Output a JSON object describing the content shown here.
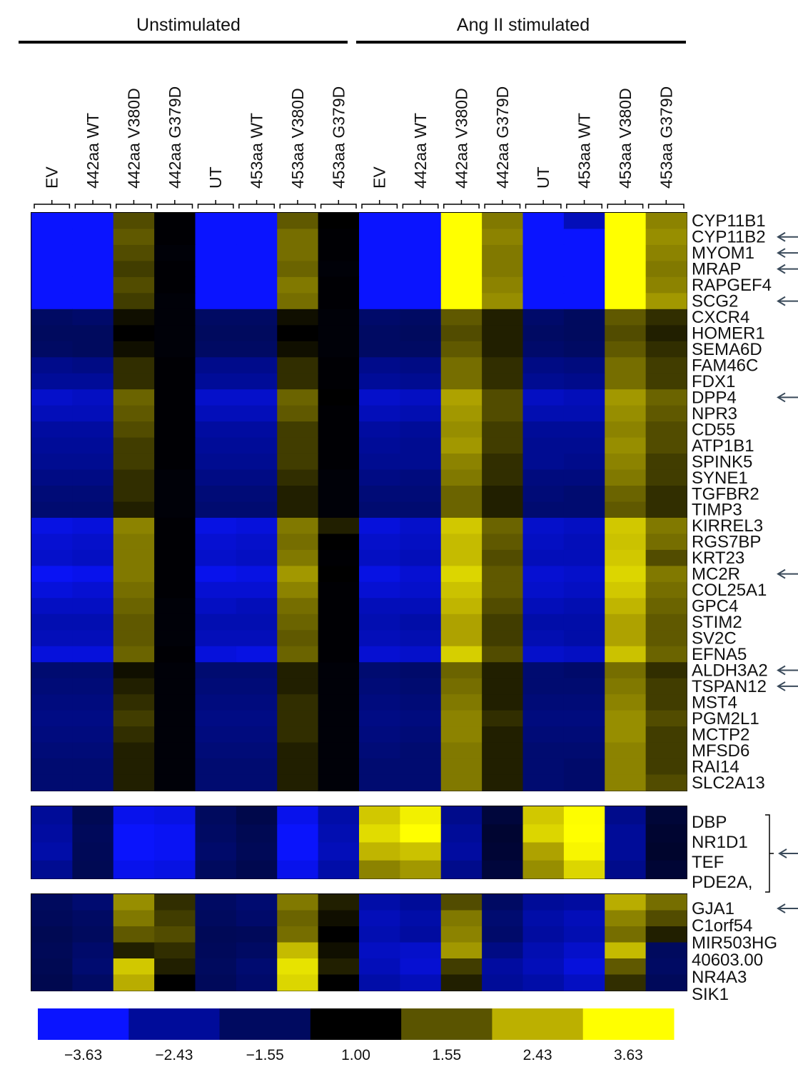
{
  "chart_data": {
    "type": "heatmap",
    "groups": [
      "Unstimulated",
      "Ang II stimulated"
    ],
    "conditions": [
      "EV",
      "442aa WT",
      "442aa V380D",
      "442aa G379D",
      "UT",
      "453aa WT",
      "453aa V380D",
      "453aa G379D",
      "EV",
      "442aa WT",
      "442aa V380D",
      "442aa G379D",
      "UT",
      "453aa WT",
      "453aa V380D",
      "453aa G379D"
    ],
    "legend": {
      "ticks": [
        "−3.63",
        "−2.43",
        "−1.55",
        "1.00",
        "1.55",
        "2.43",
        "3.63"
      ],
      "colors": [
        "#0a14ff",
        "#000c9a",
        "#000a60",
        "#000000",
        "#5a5400",
        "#bcb000",
        "#ffff00"
      ]
    },
    "panels": [
      {
        "genes": [
          "CYP11B1",
          "CYP11B2",
          "MYOM1",
          "MRAP",
          "RAPGEF4",
          "SCG2",
          "CXCR4",
          "HOMER1",
          "SEMA6D",
          "FAM46C",
          "FDX1",
          "DPP4",
          "NPR3",
          "CD55",
          "ATP1B1",
          "SPINK5",
          "SYNE1",
          "TGFBR2",
          "TIMP3",
          "KIRREL3",
          "RGS7BP",
          "KRT23",
          "MC2R",
          "COL25A1",
          "GPC4",
          "STIM2",
          "SV2C",
          "EFNA5",
          "ALDH3A2",
          "TSPAN12",
          "MST4",
          "PGM2L1",
          "MCTP2",
          "MFSD6",
          "RAI14",
          "SLC2A13"
        ],
        "arrows": [
          "CYP11B2",
          "MYOM1",
          "MRAP",
          "SCG2",
          "DPP4",
          "MC2R",
          "ALDH3A2",
          "TSPAN12"
        ],
        "values": [
          [
            -3.63,
            -3.63,
            1.5,
            0.9,
            -3.63,
            -3.63,
            1.6,
            1.0,
            -3.63,
            -3.63,
            3.63,
            1.9,
            -3.63,
            -2.8,
            3.63,
            2.0
          ],
          [
            -3.63,
            -3.63,
            1.6,
            0.9,
            -3.63,
            -3.63,
            1.8,
            0.9,
            -3.63,
            -3.63,
            3.63,
            2.0,
            -3.63,
            -3.63,
            3.63,
            2.1
          ],
          [
            -3.63,
            -3.63,
            1.5,
            0.8,
            -3.63,
            -3.63,
            1.8,
            0.9,
            -3.63,
            -3.63,
            3.63,
            1.9,
            -3.63,
            -3.63,
            3.63,
            2.0
          ],
          [
            -3.63,
            -3.63,
            1.4,
            0.9,
            -3.63,
            -3.63,
            1.7,
            0.8,
            -3.63,
            -3.63,
            3.63,
            1.9,
            -3.63,
            -3.63,
            3.63,
            1.9
          ],
          [
            -3.63,
            -3.63,
            1.5,
            0.9,
            -3.63,
            -3.63,
            1.9,
            0.9,
            -3.63,
            -3.63,
            3.63,
            2.0,
            -3.63,
            -3.63,
            3.63,
            2.0
          ],
          [
            -3.63,
            -3.63,
            1.4,
            0.8,
            -3.63,
            -3.63,
            1.8,
            0.9,
            -3.63,
            -3.63,
            3.63,
            2.1,
            -3.63,
            -3.63,
            3.63,
            2.2
          ],
          [
            -1.6,
            -1.7,
            1.1,
            0.8,
            -1.6,
            -1.6,
            1.1,
            0.8,
            -1.7,
            -1.6,
            1.6,
            1.2,
            -1.7,
            -1.5,
            1.6,
            1.3
          ],
          [
            -1.5,
            -1.5,
            1.0,
            0.8,
            -1.5,
            -1.5,
            1.0,
            0.8,
            -1.6,
            -1.5,
            1.5,
            1.2,
            -1.6,
            -1.5,
            1.5,
            1.2
          ],
          [
            -1.6,
            -1.5,
            1.1,
            0.8,
            -1.6,
            -1.6,
            1.1,
            0.8,
            -1.6,
            -1.6,
            1.6,
            1.2,
            -1.7,
            -1.6,
            1.6,
            1.3
          ],
          [
            -2.2,
            -2.1,
            1.3,
            0.9,
            -2.2,
            -2.2,
            1.3,
            0.9,
            -2.2,
            -2.1,
            1.8,
            1.3,
            -2.1,
            -2.0,
            1.8,
            1.4
          ],
          [
            -2.4,
            -2.4,
            1.3,
            0.9,
            -2.4,
            -2.4,
            1.3,
            0.9,
            -2.4,
            -2.3,
            1.8,
            1.3,
            -2.3,
            -2.2,
            1.8,
            1.4
          ],
          [
            -3.0,
            -2.9,
            1.7,
            0.9,
            -3.0,
            -3.0,
            1.7,
            1.0,
            -3.0,
            -2.9,
            2.3,
            1.5,
            -2.9,
            -2.8,
            2.2,
            1.7
          ],
          [
            -2.8,
            -2.8,
            1.6,
            0.9,
            -2.8,
            -2.8,
            1.6,
            0.9,
            -2.8,
            -2.7,
            2.2,
            1.5,
            -2.7,
            -2.7,
            2.1,
            1.6
          ],
          [
            -2.5,
            -2.5,
            1.5,
            0.9,
            -2.5,
            -2.5,
            1.4,
            0.9,
            -2.5,
            -2.4,
            2.1,
            1.4,
            -2.4,
            -2.4,
            2.0,
            1.5
          ],
          [
            -2.4,
            -2.4,
            1.4,
            0.9,
            -2.4,
            -2.4,
            1.4,
            0.9,
            -2.4,
            -2.3,
            2.2,
            1.4,
            -2.3,
            -2.3,
            2.1,
            1.5
          ],
          [
            -2.3,
            -2.3,
            1.4,
            0.9,
            -2.3,
            -2.3,
            1.4,
            0.9,
            -2.3,
            -2.3,
            2.0,
            1.3,
            -2.3,
            -2.2,
            2.0,
            1.4
          ],
          [
            -2.1,
            -2.1,
            1.3,
            0.8,
            -2.1,
            -2.1,
            1.3,
            0.8,
            -2.1,
            -2.0,
            1.9,
            1.3,
            -2.0,
            -2.0,
            1.9,
            1.4
          ],
          [
            -1.9,
            -1.9,
            1.3,
            0.8,
            -1.9,
            -1.9,
            1.2,
            0.8,
            -1.9,
            -1.9,
            1.7,
            1.2,
            -1.9,
            -1.8,
            1.7,
            1.3
          ],
          [
            -1.8,
            -1.8,
            1.2,
            0.8,
            -1.8,
            -1.8,
            1.2,
            0.8,
            -1.8,
            -1.8,
            1.7,
            1.2,
            -1.8,
            -1.8,
            1.6,
            1.3
          ],
          [
            -3.3,
            -3.2,
            2.0,
            0.9,
            -3.3,
            -3.2,
            1.9,
            1.2,
            -3.2,
            -3.0,
            2.8,
            1.7,
            -3.0,
            -2.9,
            2.8,
            1.9
          ],
          [
            -3.1,
            -3.0,
            1.9,
            0.9,
            -3.1,
            -3.0,
            1.8,
            1.0,
            -3.0,
            -2.9,
            2.6,
            1.6,
            -2.9,
            -2.8,
            2.7,
            1.8
          ],
          [
            -3.0,
            -2.9,
            1.9,
            0.9,
            -3.0,
            -2.9,
            1.9,
            0.9,
            -2.9,
            -2.8,
            2.6,
            1.5,
            -2.8,
            -2.8,
            2.8,
            1.5
          ],
          [
            -3.5,
            -3.4,
            1.9,
            0.9,
            -3.4,
            -3.3,
            2.2,
            1.0,
            -3.3,
            -3.1,
            3.0,
            1.6,
            -3.1,
            -3.0,
            3.0,
            1.9
          ],
          [
            -3.2,
            -3.1,
            1.8,
            0.9,
            -3.1,
            -3.1,
            2.0,
            0.9,
            -3.1,
            -3.0,
            2.7,
            1.6,
            -3.0,
            -2.9,
            2.8,
            1.8
          ],
          [
            -2.9,
            -2.9,
            1.7,
            0.8,
            -2.9,
            -2.8,
            1.8,
            0.9,
            -2.8,
            -2.8,
            2.5,
            1.5,
            -2.8,
            -2.7,
            2.5,
            1.7
          ],
          [
            -2.7,
            -2.7,
            1.6,
            0.8,
            -2.7,
            -2.7,
            1.7,
            0.9,
            -2.7,
            -2.6,
            2.3,
            1.4,
            -2.6,
            -2.6,
            2.3,
            1.6
          ],
          [
            -2.8,
            -2.8,
            1.6,
            0.8,
            -2.8,
            -2.8,
            1.6,
            0.9,
            -2.8,
            -2.7,
            2.3,
            1.4,
            -2.7,
            -2.6,
            2.3,
            1.6
          ],
          [
            -3.2,
            -3.2,
            1.7,
            0.9,
            -3.2,
            -3.3,
            1.7,
            0.9,
            -3.1,
            -3.0,
            2.9,
            1.5,
            -3.0,
            -2.9,
            2.7,
            1.7
          ],
          [
            -1.8,
            -1.8,
            1.1,
            0.8,
            -1.8,
            -1.8,
            1.2,
            0.8,
            -1.8,
            -1.7,
            1.7,
            1.2,
            -1.8,
            -1.7,
            1.8,
            1.3
          ],
          [
            -1.9,
            -1.9,
            1.2,
            0.8,
            -1.9,
            -1.9,
            1.2,
            0.8,
            -1.9,
            -1.8,
            1.8,
            1.2,
            -1.8,
            -1.8,
            1.9,
            1.4
          ],
          [
            -2.0,
            -2.0,
            1.3,
            0.8,
            -2.0,
            -2.0,
            1.3,
            0.8,
            -2.0,
            -1.9,
            1.9,
            1.2,
            -1.9,
            -1.9,
            2.0,
            1.4
          ],
          [
            -2.1,
            -2.1,
            1.4,
            0.8,
            -2.1,
            -2.1,
            1.3,
            0.8,
            -2.1,
            -2.0,
            2.0,
            1.3,
            -2.0,
            -2.0,
            2.1,
            1.5
          ],
          [
            -2.0,
            -2.0,
            1.3,
            0.8,
            -2.0,
            -2.0,
            1.3,
            0.8,
            -2.0,
            -1.9,
            2.0,
            1.2,
            -1.9,
            -1.9,
            2.1,
            1.4
          ],
          [
            -1.9,
            -1.9,
            1.2,
            0.8,
            -1.9,
            -1.9,
            1.2,
            0.8,
            -1.9,
            -1.8,
            1.9,
            1.2,
            -1.8,
            -1.8,
            2.0,
            1.4
          ],
          [
            -1.8,
            -1.8,
            1.2,
            0.8,
            -1.8,
            -1.8,
            1.2,
            0.8,
            -1.8,
            -1.8,
            1.9,
            1.2,
            -1.8,
            -1.7,
            2.0,
            1.4
          ],
          [
            -1.8,
            -1.8,
            1.2,
            0.8,
            -1.8,
            -1.8,
            1.2,
            0.8,
            -1.8,
            -1.8,
            1.9,
            1.2,
            -1.8,
            -1.7,
            2.0,
            1.5
          ]
        ]
      },
      {
        "genes": [
          "DBP",
          "NR1D1",
          "TEF",
          "PDE2A,"
        ],
        "arrows": [
          "NR1D1"
        ],
        "bracket": true,
        "values": [
          [
            -2.4,
            -1.2,
            -3.4,
            -3.3,
            -1.5,
            -1.0,
            -3.4,
            -2.6,
            2.8,
            3.4,
            -2.2,
            -0.6,
            2.8,
            3.6,
            -2.2,
            -0.5
          ],
          [
            -2.5,
            -1.4,
            -3.6,
            -3.5,
            -1.6,
            -1.2,
            -3.6,
            -2.7,
            3.1,
            3.63,
            -2.4,
            -0.3,
            3.0,
            3.63,
            -2.4,
            -0.3
          ],
          [
            -2.6,
            -1.3,
            -3.6,
            -3.5,
            -1.7,
            -1.3,
            -3.6,
            -2.8,
            2.5,
            2.7,
            -2.5,
            -0.4,
            2.3,
            3.5,
            -2.4,
            -0.2
          ],
          [
            -2.3,
            -1.2,
            -3.4,
            -3.3,
            -1.5,
            -1.1,
            -3.4,
            -2.6,
            2.0,
            2.2,
            -2.2,
            -0.6,
            2.1,
            3.0,
            -2.2,
            -0.4
          ]
        ]
      },
      {
        "genes": [
          "GJA1",
          "C1orf54",
          "MIR503HG",
          "40603.00",
          "NR4A3",
          "SIK1"
        ],
        "arrows": [
          "GJA1"
        ],
        "values": [
          [
            -1.5,
            -1.8,
            2.1,
            1.3,
            -1.6,
            -1.8,
            1.9,
            1.2,
            -2.6,
            -2.4,
            1.5,
            -1.6,
            -2.4,
            -2.5,
            2.4,
            1.8
          ],
          [
            -1.4,
            -1.6,
            1.9,
            1.4,
            -1.5,
            -1.7,
            1.7,
            1.1,
            -2.8,
            -2.6,
            1.9,
            -1.8,
            -2.6,
            -2.8,
            2.0,
            1.5
          ],
          [
            -1.2,
            -1.5,
            1.6,
            1.5,
            -1.3,
            -1.4,
            1.8,
            1.0,
            -2.7,
            -2.5,
            2.0,
            -1.7,
            -2.5,
            -2.7,
            1.8,
            1.2
          ],
          [
            -1.3,
            -1.7,
            1.2,
            1.3,
            -1.4,
            -1.6,
            2.6,
            1.1,
            -2.9,
            -3.0,
            2.2,
            -2.1,
            -2.7,
            -3.0,
            2.6,
            -1.5
          ],
          [
            -1.2,
            -1.8,
            2.8,
            1.2,
            -1.5,
            -1.8,
            3.2,
            1.2,
            -2.8,
            -3.1,
            1.4,
            -2.5,
            -2.8,
            -3.2,
            1.6,
            -1.6
          ],
          [
            -1.1,
            -1.6,
            2.4,
            1.0,
            -1.4,
            -1.7,
            3.0,
            1.0,
            -2.6,
            -2.8,
            1.2,
            -2.4,
            -2.6,
            -2.9,
            1.3,
            -1.4
          ]
        ]
      }
    ]
  }
}
